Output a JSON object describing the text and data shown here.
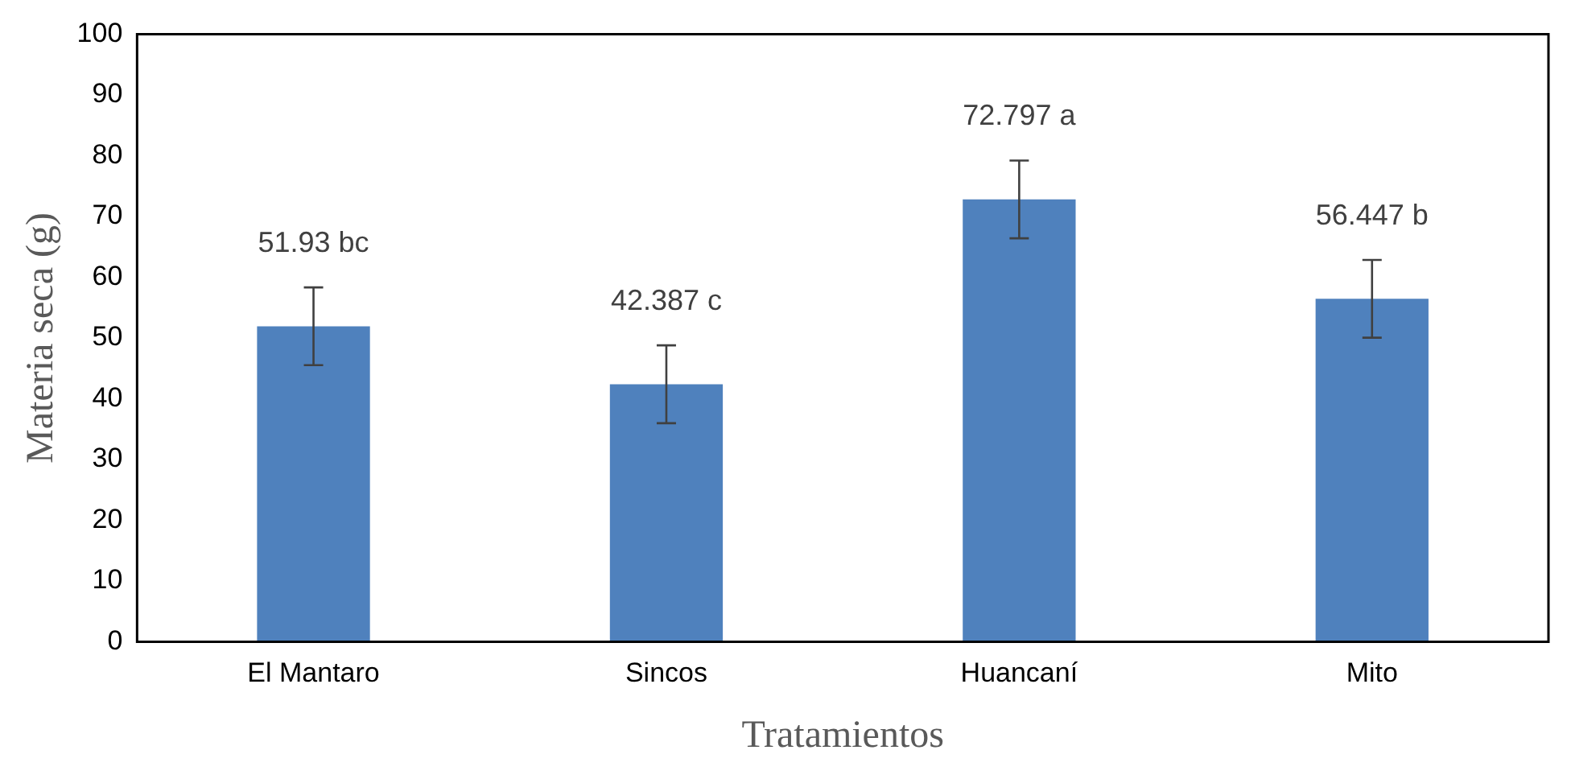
{
  "chart_data": {
    "type": "bar",
    "xlabel": "Tratamientos",
    "ylabel": "Materia seca (g)",
    "categories": [
      "El Mantaro",
      "Sincos",
      "Huancaní",
      "Mito"
    ],
    "values": [
      51.93,
      42.387,
      72.797,
      56.447
    ],
    "errors": [
      6.4,
      6.4,
      6.4,
      6.4
    ],
    "value_labels": [
      "51.93 bc",
      "42.387 c",
      "72.797 a",
      "56.447 b"
    ],
    "color": "#4f81bd",
    "ylim": [
      0,
      100
    ],
    "yticks": [
      0,
      10,
      20,
      30,
      40,
      50,
      60,
      70,
      80,
      90,
      100
    ],
    "grid": false,
    "legend": false
  }
}
